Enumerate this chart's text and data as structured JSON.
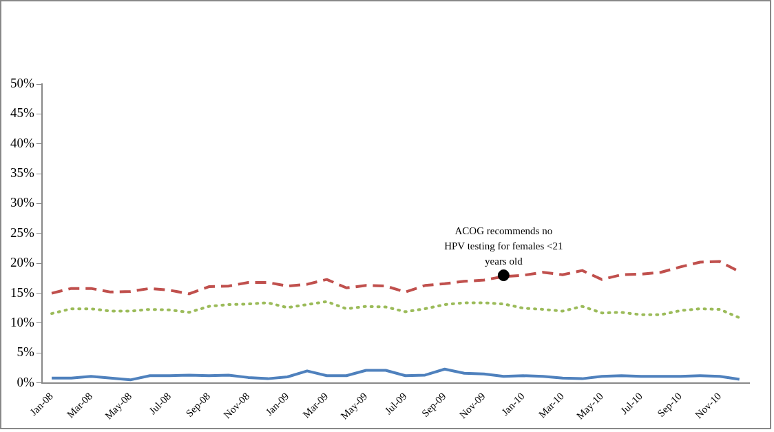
{
  "chart_data": {
    "type": "line",
    "categories": [
      "Jan-08",
      null,
      "Mar-08",
      null,
      "May-08",
      null,
      "Jul-08",
      null,
      "Sep-08",
      null,
      "Nov-08",
      null,
      "Jan-09",
      null,
      "Mar-09",
      null,
      "May-09",
      null,
      "Jul-09",
      null,
      "Sep-09",
      null,
      "Nov-09",
      null,
      "Jan-10",
      null,
      "Mar-10",
      null,
      "May-10",
      null,
      "Jul-10",
      null,
      "Sep-10",
      null,
      "Nov-10",
      null
    ],
    "series": [
      {
        "color": "#c0504d",
        "line_style": "dashed",
        "values": [
          15,
          15.8,
          15.8,
          15.2,
          15.3,
          15.8,
          15.5,
          14.9,
          16.1,
          16.2,
          16.8,
          16.8,
          16.2,
          16.5,
          17.3,
          15.9,
          16.3,
          16.2,
          15.2,
          16.3,
          16.6,
          17,
          17.2,
          17.8,
          18,
          18.5,
          18.1,
          18.8,
          17.3,
          18.1,
          18.2,
          18.5,
          19.4,
          20.2,
          20.3,
          18.6
        ]
      },
      {
        "color": "#9bbb59",
        "line_style": "dotted",
        "values": [
          11.6,
          12.4,
          12.4,
          12,
          12,
          12.3,
          12.2,
          11.8,
          12.8,
          13.1,
          13.2,
          13.4,
          12.6,
          13.1,
          13.6,
          12.4,
          12.8,
          12.7,
          11.9,
          12.4,
          13.1,
          13.4,
          13.4,
          13.2,
          12.5,
          12.3,
          12,
          12.8,
          11.7,
          11.8,
          11.4,
          11.4,
          12.1,
          12.4,
          12.3,
          10.9
        ]
      },
      {
        "color": "#4f81bd",
        "line_style": "solid",
        "values": [
          0.8,
          0.8,
          1.1,
          0.8,
          0.5,
          1.2,
          1.2,
          1.3,
          1.2,
          1.3,
          0.9,
          0.7,
          1,
          2,
          1.2,
          1.2,
          2.1,
          2.1,
          1.2,
          1.3,
          2.3,
          1.6,
          1.5,
          1.1,
          1.2,
          1.1,
          0.8,
          0.7,
          1.1,
          1.2,
          1.1,
          1.1,
          1.1,
          1.2,
          1.1,
          0.6
        ]
      },
      {
        "type": "scatter",
        "color": "#000000",
        "marker": "circle",
        "values": [
          null,
          null,
          null,
          null,
          null,
          null,
          null,
          null,
          null,
          null,
          null,
          null,
          null,
          null,
          null,
          null,
          null,
          null,
          null,
          null,
          null,
          null,
          null,
          18,
          null,
          null,
          null,
          null,
          null,
          null,
          null,
          null,
          null,
          null,
          null,
          null
        ]
      }
    ],
    "ylim": [
      0,
      50
    ],
    "yticks": [
      {
        "value": 0,
        "label": "0%"
      },
      {
        "value": 5,
        "label": "5%"
      },
      {
        "value": 10,
        "label": "10%"
      },
      {
        "value": 15,
        "label": "15%"
      },
      {
        "value": 20,
        "label": "20%"
      },
      {
        "value": 25,
        "label": "25%"
      },
      {
        "value": 30,
        "label": "30%"
      },
      {
        "value": 35,
        "label": "35%"
      },
      {
        "value": 40,
        "label": "40%"
      },
      {
        "value": 45,
        "label": "45%"
      },
      {
        "value": 50,
        "label": "50%"
      }
    ],
    "annotations": [
      "ACOG recommends no\nHPV testing for females <21\nyears old"
    ],
    "grid": false,
    "legend": false,
    "marker": "none"
  }
}
